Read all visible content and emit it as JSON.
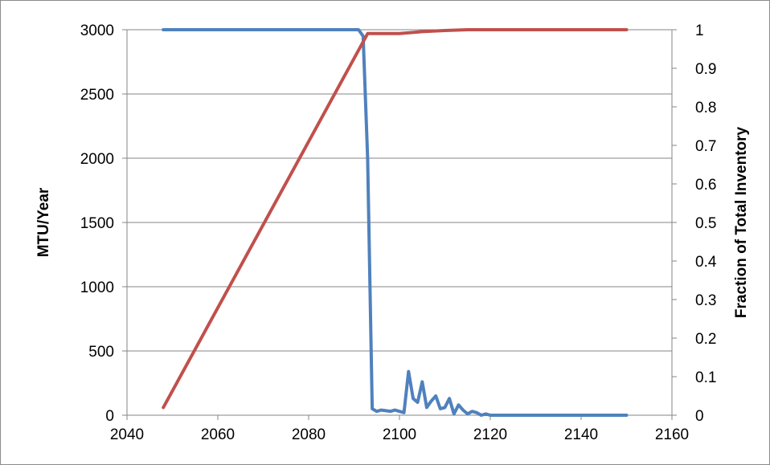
{
  "chart_data": {
    "type": "line",
    "title": "",
    "xlabel": "",
    "ylabel": "MTU/Year",
    "y2label": "Fraction of Total Inventory",
    "xlim": [
      2040,
      2160
    ],
    "ylim": [
      0,
      3000
    ],
    "y2lim": [
      0,
      1
    ],
    "xticks": [
      "2040",
      "2060",
      "2080",
      "2100",
      "2120",
      "2140",
      "2160"
    ],
    "yticks": [
      "0",
      "500",
      "1000",
      "1500",
      "2000",
      "2500",
      "3000"
    ],
    "y2ticks": [
      "0",
      "0.1",
      "0.2",
      "0.3",
      "0.4",
      "0.5",
      "0.6",
      "0.7",
      "0.8",
      "0.9",
      "1"
    ],
    "grid": "horizontal",
    "legend": "none",
    "series": [
      {
        "axis": "left",
        "color": "#4f81bd",
        "x": [
          2048,
          2091,
          2092,
          2093,
          2094,
          2095,
          2096,
          2097,
          2098,
          2099,
          2100,
          2101,
          2102,
          2103,
          2104,
          2105,
          2106,
          2107,
          2108,
          2109,
          2110,
          2111,
          2112,
          2113,
          2114,
          2115,
          2116,
          2117,
          2118,
          2119,
          2120,
          2150
        ],
        "values": [
          3000,
          3000,
          2950,
          2000,
          50,
          30,
          40,
          35,
          30,
          40,
          30,
          20,
          340,
          130,
          100,
          260,
          60,
          110,
          150,
          50,
          60,
          130,
          10,
          80,
          40,
          10,
          30,
          20,
          0,
          10,
          0,
          0
        ]
      },
      {
        "axis": "right",
        "color": "#c0504d",
        "x": [
          2048,
          2093,
          2100,
          2105,
          2110,
          2115,
          2150
        ],
        "values": [
          0.02,
          0.99,
          0.99,
          0.995,
          0.998,
          1.0,
          1.0
        ]
      }
    ]
  }
}
